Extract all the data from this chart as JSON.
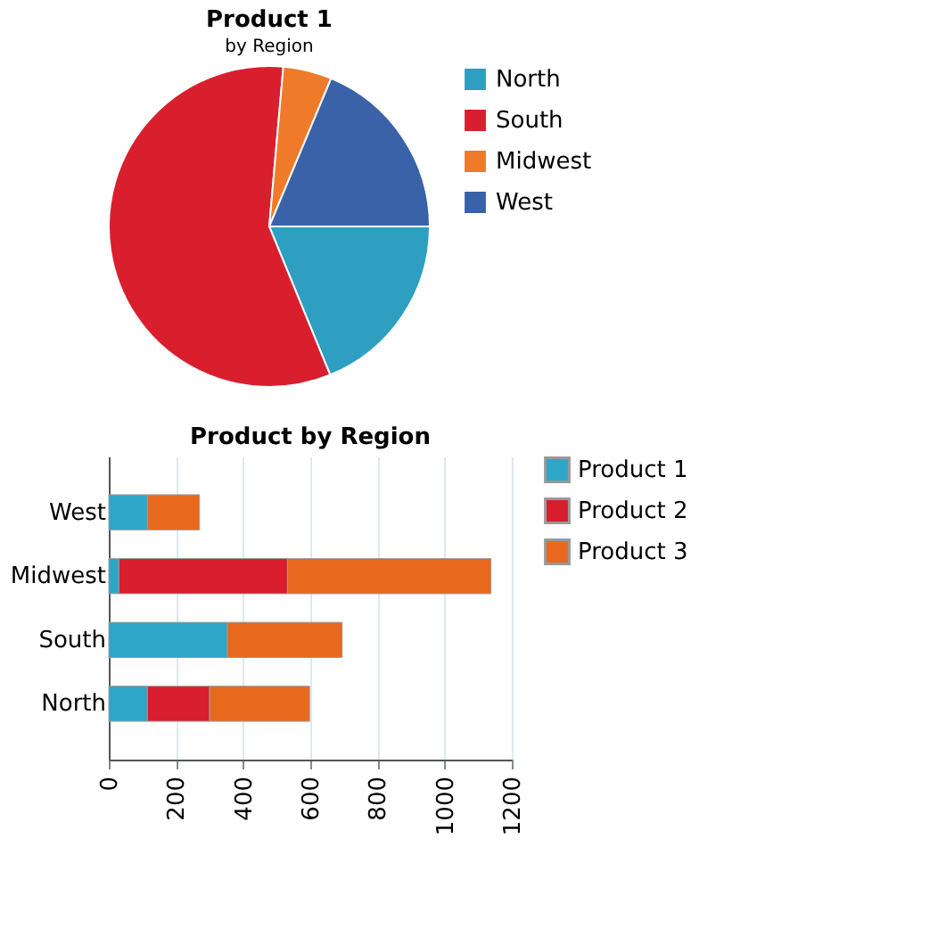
{
  "chart_data": [
    {
      "type": "pie",
      "title": "Product 1",
      "subtitle": "by Region",
      "categories": [
        "North",
        "South",
        "Midwest",
        "West"
      ],
      "values": [
        18.8,
        57.6,
        4.9,
        18.7
      ],
      "colors": [
        "#2e9fc0",
        "#d91f2e",
        "#ef7a2a",
        "#3a62a8"
      ],
      "legend": "right"
    },
    {
      "type": "bar",
      "title": "Product by Region",
      "orientation": "horizontal",
      "stacked": true,
      "categories": [
        "West",
        "Midwest",
        "South",
        "North"
      ],
      "series": [
        {
          "name": "Product 1",
          "color": "#2ea6c8",
          "values": [
            115,
            30,
            353,
            115
          ]
        },
        {
          "name": "Product 2",
          "color": "#d81e2e",
          "values": [
            null,
            502,
            null,
            185
          ]
        },
        {
          "name": "Product 3",
          "color": "#e8691e",
          "values": [
            155,
            606,
            342,
            298
          ]
        }
      ],
      "xlim": [
        0,
        1200
      ],
      "xticks": [
        0,
        200,
        400,
        600,
        800,
        1000,
        1200
      ],
      "grid": "x",
      "legend": "right"
    }
  ]
}
